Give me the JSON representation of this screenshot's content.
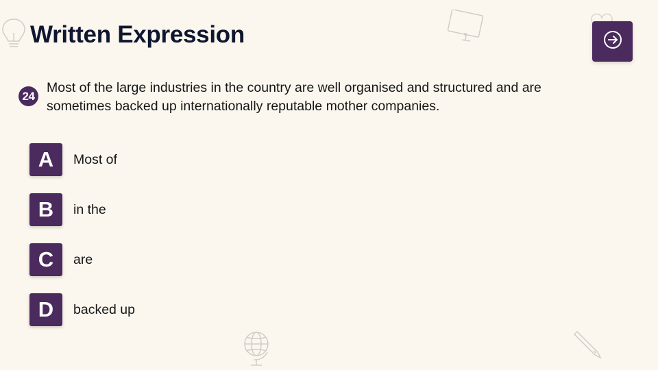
{
  "header": {
    "title": "Written Expression",
    "next_icon": "arrow-right-circle-icon"
  },
  "question": {
    "number": "24",
    "text": "Most of the large industries in the country are well organised and structured and are sometimes backed up internationally reputable mother companies."
  },
  "options": [
    {
      "letter": "A",
      "text": "Most of"
    },
    {
      "letter": "B",
      "text": "in the"
    },
    {
      "letter": "C",
      "text": "are"
    },
    {
      "letter": "D",
      "text": "backed up"
    }
  ],
  "decorations": [
    "lightbulb-icon",
    "monitor-icon",
    "heart-icon",
    "globe-icon",
    "pencil-icon"
  ],
  "colors": {
    "background": "#fbf7ee",
    "accent": "#4b2a5e",
    "title": "#0f1730"
  }
}
